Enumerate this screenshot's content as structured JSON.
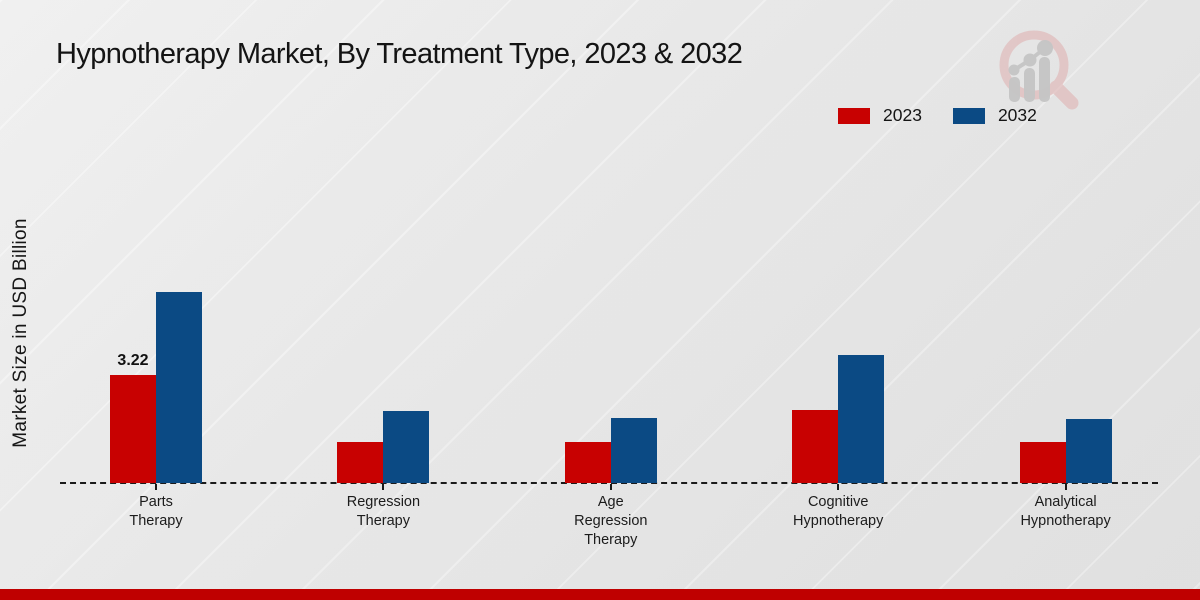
{
  "title": "Hypnotherapy Market, By Treatment Type, 2023 & 2032",
  "ylabel": "Market Size in USD Billion",
  "legend": {
    "items": [
      {
        "label": "2023",
        "color": "#c80101"
      },
      {
        "label": "2032",
        "color": "#0b4a84"
      }
    ]
  },
  "chart_data": {
    "type": "bar",
    "categories": [
      "Parts Therapy",
      "Regression Therapy",
      "Age Regression Therapy",
      "Cognitive Hypnotherapy",
      "Analytical Hypnotherapy"
    ],
    "series": [
      {
        "name": "2023",
        "color": "#c80101",
        "values": [
          3.22,
          1.22,
          1.22,
          2.18,
          1.22
        ],
        "data_labels": [
          "3.22",
          "",
          "",
          "",
          ""
        ]
      },
      {
        "name": "2032",
        "color": "#0b4a84",
        "values": [
          5.7,
          2.15,
          1.94,
          3.82,
          1.91
        ],
        "data_labels": [
          "",
          "",
          "",
          "",
          ""
        ]
      }
    ],
    "title": "Hypnotherapy Market, By Treatment Type, 2023 & 2032",
    "xlabel": "",
    "ylabel": "Market Size in USD Billion",
    "ylim": [
      0,
      6
    ],
    "grid": false,
    "y_axis_ticks_visible": false,
    "baseline_style": "dashed",
    "legend_position": "top-right"
  },
  "logo": {
    "name": "magnifier-bar-chart-logo",
    "accent": "#dfaeae",
    "bar_color": "#c5c5c5"
  },
  "footer": {
    "bar_color": "#bf0000"
  },
  "colors": {
    "background": "#e9e9e9",
    "text": "#141414"
  }
}
